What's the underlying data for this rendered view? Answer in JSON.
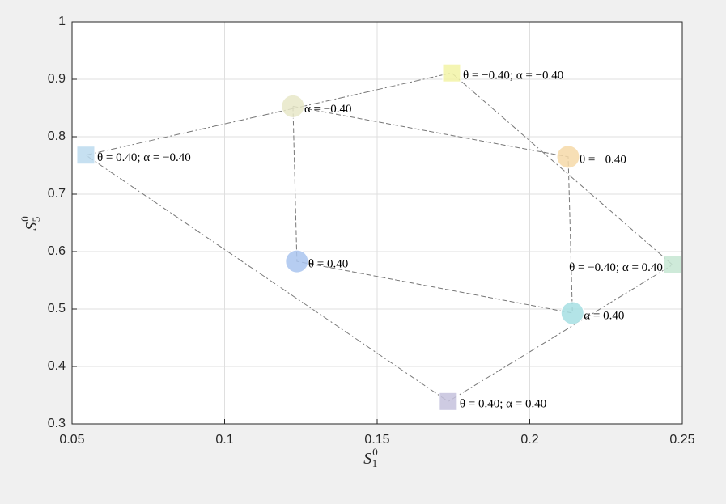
{
  "chart_data": {
    "type": "scatter",
    "xlabel": {
      "base": "S",
      "sub": "1",
      "sup": "0"
    },
    "ylabel": {
      "base": "S",
      "sub": "5",
      "sup": "0"
    },
    "xlim": [
      0.05,
      0.25
    ],
    "ylim": [
      0.3,
      1
    ],
    "xticks": [
      0.05,
      0.1,
      0.15,
      0.2,
      0.25
    ],
    "yticks": [
      0.3,
      0.4,
      0.5,
      0.6,
      0.7,
      0.8,
      0.9,
      1
    ],
    "grid": true,
    "series": [
      {
        "marker": "circle",
        "x": [
          0.1224,
          0.1237,
          0.2126,
          0.214
        ],
        "y": [
          0.853,
          0.583,
          0.765,
          0.493
        ],
        "colors": [
          "#e8e7c8",
          "#a9c4ee",
          "#f6d9a8",
          "#a6dfe3"
        ],
        "labels": [
          "α = −0.40",
          "θ = 0.40",
          "θ = −0.40",
          "α = 0.40"
        ]
      },
      {
        "marker": "square",
        "x": [
          0.0545,
          0.1744,
          0.2468,
          0.1733
        ],
        "y": [
          0.768,
          0.911,
          0.577,
          0.339
        ],
        "colors": [
          "#bcdaef",
          "#f2f3a6",
          "#c5e6d2",
          "#c5c2dd"
        ],
        "labels": [
          "θ = 0.40; α = −0.40",
          "θ = −0.40; α = −0.40",
          "θ = −0.40; α = 0.40",
          "θ = 0.40; α = 0.40"
        ]
      }
    ]
  }
}
